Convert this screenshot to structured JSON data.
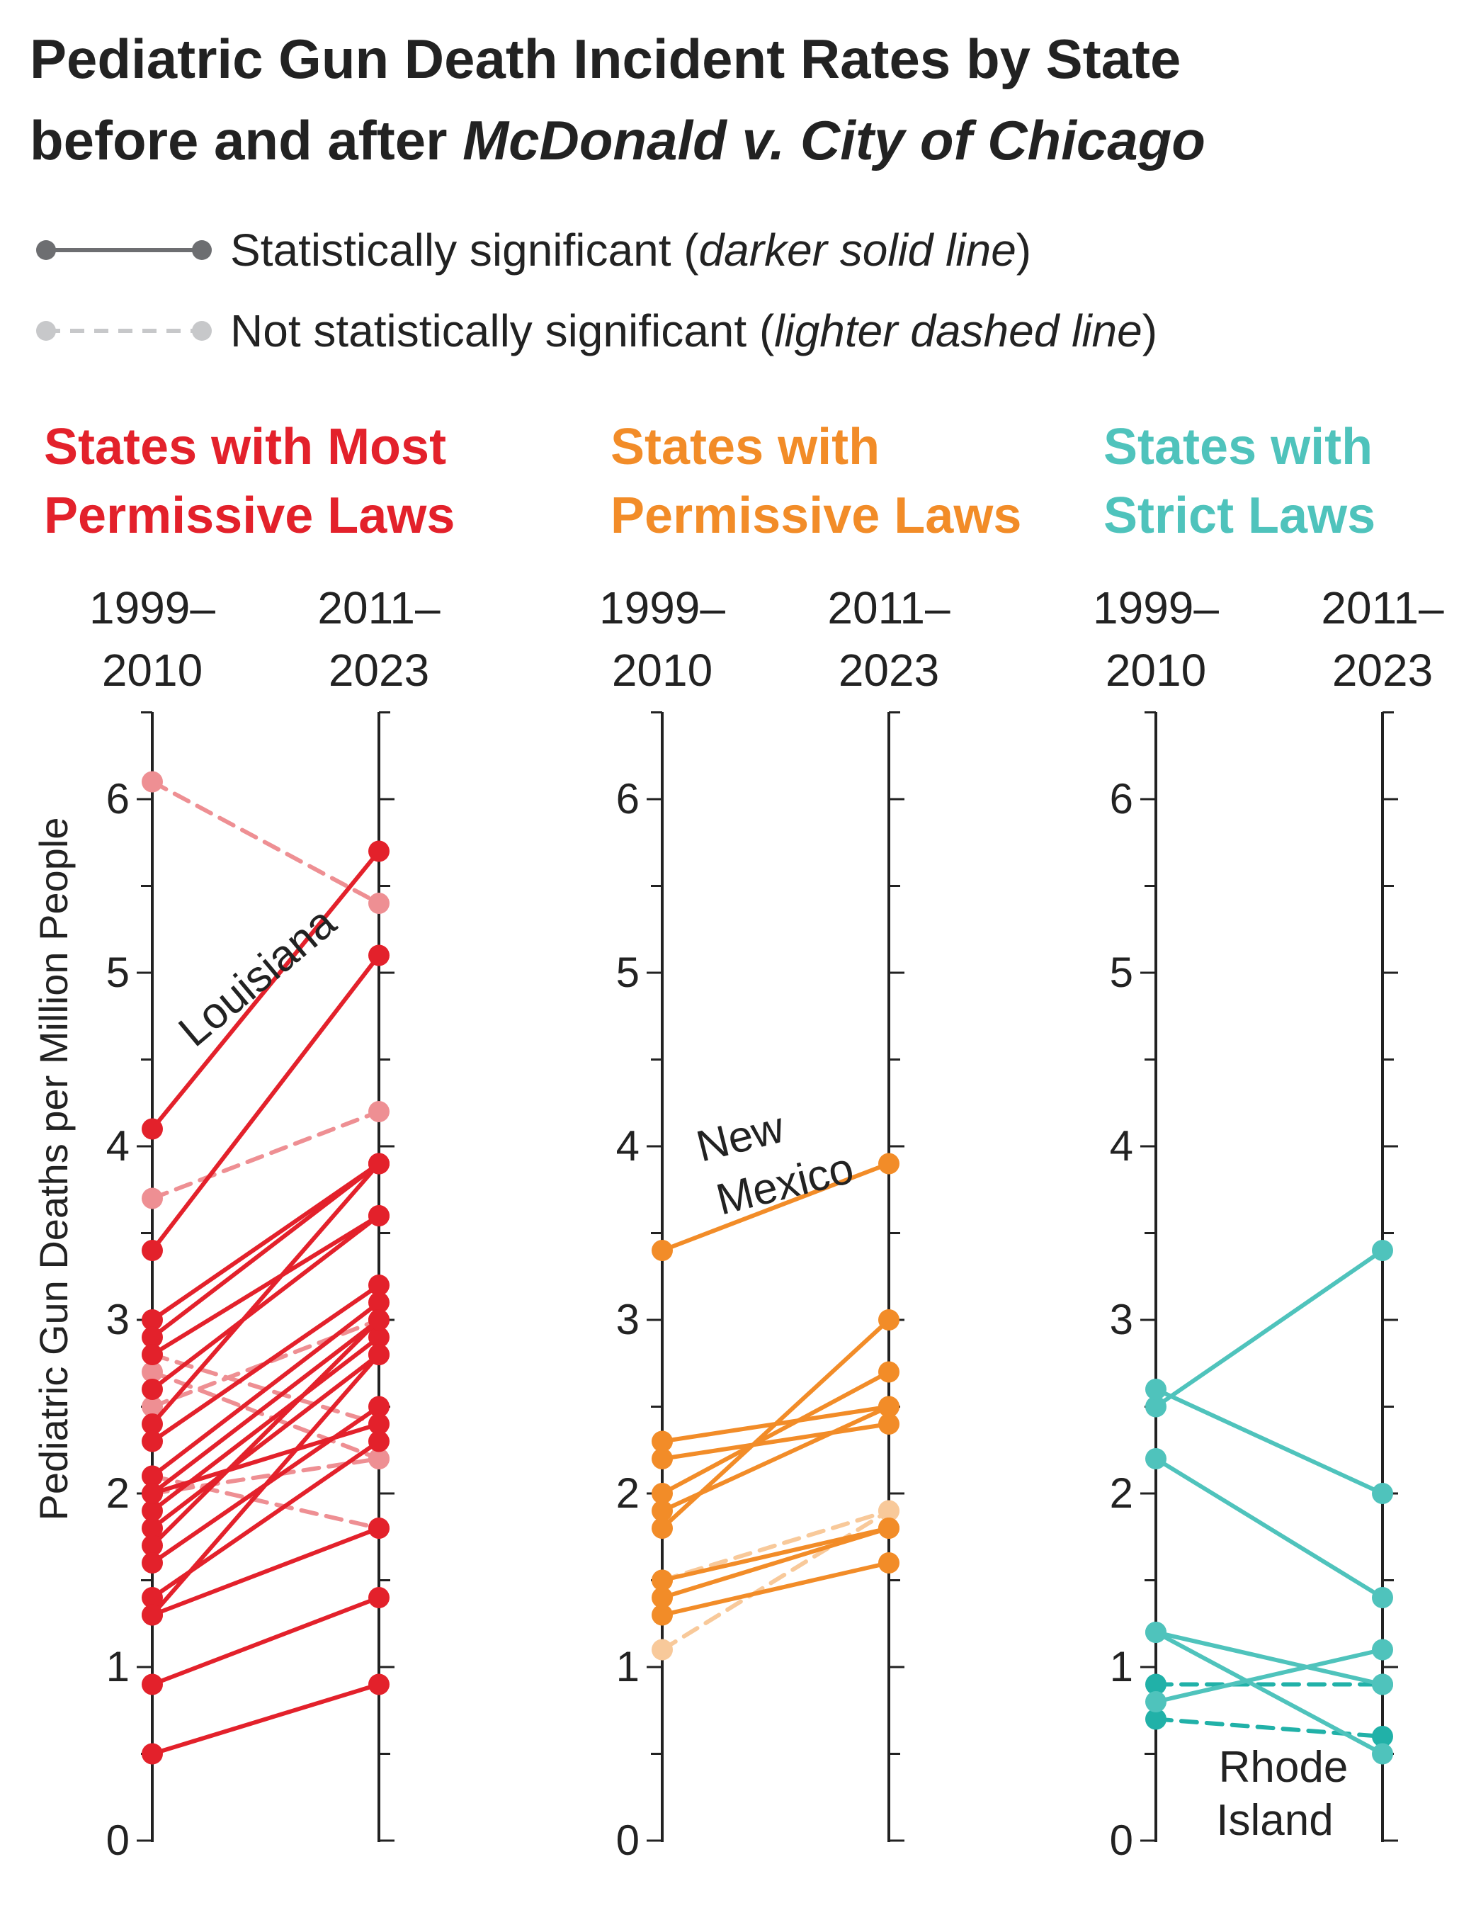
{
  "title_line1": "Pediatric Gun Death Incident Rates by State",
  "title_line2_plain": "before and after ",
  "title_line2_italic": "McDonald v. City of Chicago",
  "legend": {
    "significant_text": "Statistically significant (",
    "significant_italic": "darker solid line",
    "significant_close": ")",
    "nonsig_text": "Not statistically significant (",
    "nonsig_italic": "lighter dashed line",
    "nonsig_close": ")"
  },
  "colors": {
    "most_permissive": "#e3212b",
    "most_permissive_light": "#ee8f93",
    "permissive": "#f28c28",
    "permissive_light": "#f8c99a",
    "strict": "#4fc3bc",
    "strict_dark": "#21b1a8",
    "legend_dark": "#6d6e71",
    "legend_light": "#c7c8ca"
  },
  "chart_data": {
    "type": "line",
    "subtype": "slope",
    "ylabel": "Pediatric Gun Deaths per Million People",
    "ylim": [
      0,
      6.5
    ],
    "yticks": [
      "0",
      "1",
      "2",
      "3",
      "4",
      "5",
      "6"
    ],
    "periods": [
      {
        "line1": "1999–",
        "line2": "2010"
      },
      {
        "line1": "2011–",
        "line2": "2023"
      }
    ],
    "panels": [
      {
        "title_line1": "States with Most",
        "title_line2": "Permissive Laws",
        "color_key": "most_permissive",
        "annotation": "Louisiana",
        "series": [
          {
            "values": [
              6.1,
              5.4
            ],
            "significant": false
          },
          {
            "values": [
              4.1,
              5.7
            ],
            "significant": true
          },
          {
            "values": [
              3.4,
              5.1
            ],
            "significant": true
          },
          {
            "values": [
              3.7,
              4.2
            ],
            "significant": false
          },
          {
            "values": [
              3.0,
              3.9
            ],
            "significant": true
          },
          {
            "values": [
              2.9,
              3.9
            ],
            "significant": true
          },
          {
            "values": [
              2.8,
              3.6
            ],
            "significant": true
          },
          {
            "values": [
              2.6,
              3.6
            ],
            "significant": true
          },
          {
            "values": [
              2.4,
              3.9
            ],
            "significant": true
          },
          {
            "values": [
              2.3,
              3.2
            ],
            "significant": true
          },
          {
            "values": [
              2.1,
              3.1
            ],
            "significant": true
          },
          {
            "values": [
              2.0,
              3.0
            ],
            "significant": true
          },
          {
            "values": [
              1.9,
              2.9
            ],
            "significant": true
          },
          {
            "values": [
              1.8,
              2.8
            ],
            "significant": true
          },
          {
            "values": [
              1.7,
              3.0
            ],
            "significant": true
          },
          {
            "values": [
              1.6,
              2.5
            ],
            "significant": true
          },
          {
            "values": [
              2.0,
              2.4
            ],
            "significant": true
          },
          {
            "values": [
              1.4,
              2.3
            ],
            "significant": true
          },
          {
            "values": [
              1.3,
              2.8
            ],
            "significant": true
          },
          {
            "values": [
              1.3,
              1.8
            ],
            "significant": true
          },
          {
            "values": [
              0.9,
              1.4
            ],
            "significant": true
          },
          {
            "values": [
              0.5,
              0.9
            ],
            "significant": true
          },
          {
            "values": [
              2.8,
              2.4
            ],
            "significant": false
          },
          {
            "values": [
              2.7,
              2.2
            ],
            "significant": false
          },
          {
            "values": [
              2.5,
              3.0
            ],
            "significant": false
          },
          {
            "values": [
              2.1,
              1.8
            ],
            "significant": false
          },
          {
            "values": [
              2.0,
              2.2
            ],
            "significant": false
          }
        ]
      },
      {
        "title_line1": "States with",
        "title_line2": "Permissive Laws",
        "color_key": "permissive",
        "annotation_line1": "New",
        "annotation_line2": "Mexico",
        "series": [
          {
            "values": [
              3.4,
              3.9
            ],
            "significant": true
          },
          {
            "values": [
              2.3,
              2.5
            ],
            "significant": true
          },
          {
            "values": [
              2.2,
              2.4
            ],
            "significant": true
          },
          {
            "values": [
              2.0,
              2.7
            ],
            "significant": true
          },
          {
            "values": [
              1.9,
              2.5
            ],
            "significant": true
          },
          {
            "values": [
              1.8,
              3.0
            ],
            "significant": true
          },
          {
            "values": [
              1.5,
              1.8
            ],
            "significant": true
          },
          {
            "values": [
              1.4,
              1.8
            ],
            "significant": true
          },
          {
            "values": [
              1.3,
              1.6
            ],
            "significant": true
          },
          {
            "values": [
              1.5,
              1.9
            ],
            "significant": false
          },
          {
            "values": [
              1.1,
              1.9
            ],
            "significant": false
          }
        ]
      },
      {
        "title_line1": "States with",
        "title_line2": "Strict Laws",
        "color_key": "strict",
        "annotation_line1": "Rhode",
        "annotation_line2": "Island",
        "series": [
          {
            "values": [
              2.5,
              3.4
            ],
            "significant": true
          },
          {
            "values": [
              2.6,
              2.0
            ],
            "significant": true
          },
          {
            "values": [
              2.2,
              1.4
            ],
            "significant": true
          },
          {
            "values": [
              1.2,
              0.9
            ],
            "significant": true
          },
          {
            "values": [
              1.2,
              0.5
            ],
            "significant": true
          },
          {
            "values": [
              0.8,
              1.1
            ],
            "significant": true
          },
          {
            "values": [
              0.9,
              0.9
            ],
            "significant": false
          },
          {
            "values": [
              0.7,
              0.6
            ],
            "significant": false
          }
        ]
      }
    ]
  }
}
